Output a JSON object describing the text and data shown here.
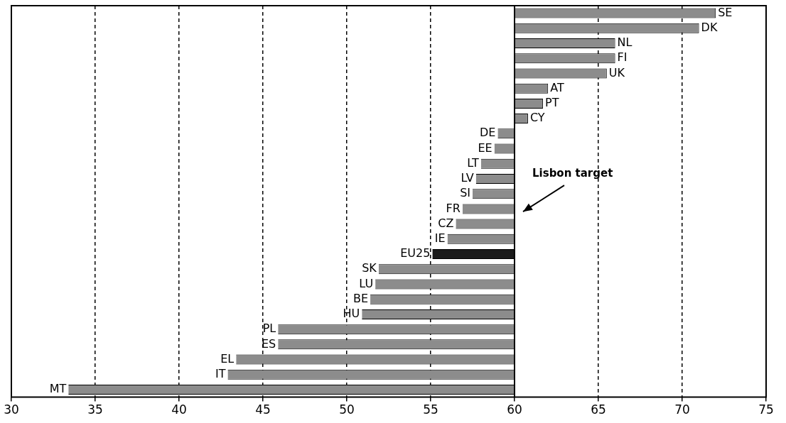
{
  "chart_data": {
    "type": "bar",
    "orientation": "horizontal",
    "categories": [
      "SE",
      "DK",
      "NL",
      "FI",
      "UK",
      "AT",
      "PT",
      "CY",
      "DE",
      "EE",
      "LT",
      "LV",
      "SI",
      "FR",
      "CZ",
      "IE",
      "EU25",
      "SK",
      "LU",
      "BE",
      "HU",
      "PL",
      "ES",
      "EL",
      "IT",
      "MT"
    ],
    "base": [
      60,
      60,
      60,
      60,
      60,
      60,
      60,
      60,
      60,
      60,
      60,
      60,
      60,
      60,
      60,
      60,
      60,
      60,
      60,
      60,
      60,
      60,
      60,
      60,
      60,
      60
    ],
    "values": [
      12.0,
      11.0,
      6.0,
      6.0,
      5.5,
      2.0,
      1.7,
      0.8,
      -1.0,
      -1.2,
      -2.0,
      -2.3,
      -2.5,
      -3.1,
      -3.5,
      -4.0,
      -4.9,
      -8.1,
      -8.3,
      -8.6,
      -9.1,
      -14.1,
      -14.1,
      -16.6,
      -17.1,
      -26.6
    ],
    "colors": [
      "#8c8c8c",
      "#8c8c8c",
      "#8c8c8c",
      "#8c8c8c",
      "#8c8c8c",
      "#8c8c8c",
      "#8c8c8c",
      "#8c8c8c",
      "#8c8c8c",
      "#8c8c8c",
      "#8c8c8c",
      "#8c8c8c",
      "#8c8c8c",
      "#8c8c8c",
      "#8c8c8c",
      "#8c8c8c",
      "#1a1a1a",
      "#8c8c8c",
      "#8c8c8c",
      "#8c8c8c",
      "#8c8c8c",
      "#8c8c8c",
      "#8c8c8c",
      "#8c8c8c",
      "#8c8c8c",
      "#8c8c8c"
    ],
    "xlim": [
      30,
      75
    ],
    "xticks": [
      30,
      35,
      40,
      45,
      50,
      55,
      60,
      65,
      70,
      75
    ],
    "grid": "x",
    "ref_lines": [
      {
        "axis": "x",
        "value": 60,
        "label": "Lisbon target",
        "color": "#000000"
      }
    ]
  }
}
